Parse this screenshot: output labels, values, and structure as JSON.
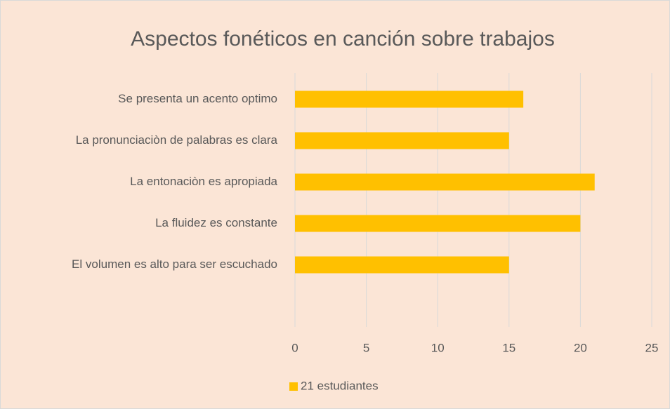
{
  "chart_data": {
    "type": "bar",
    "orientation": "horizontal",
    "title": "Aspectos fonéticos en canción sobre trabajos",
    "categories": [
      "Se presenta un acento optimo",
      "La pronunciaciòn de palabras es clara",
      "La entonaciòn es apropiada",
      "La fluidez es constante",
      "El volumen es alto para ser escuchado"
    ],
    "series": [
      {
        "name": "21 estudiantes",
        "color": "#ffc000",
        "values": [
          16,
          15,
          21,
          20,
          15
        ]
      }
    ],
    "xlim": [
      0,
      25
    ],
    "xticks": [
      0,
      5,
      10,
      15,
      20,
      25
    ],
    "grid": true,
    "legend": "bottom"
  }
}
